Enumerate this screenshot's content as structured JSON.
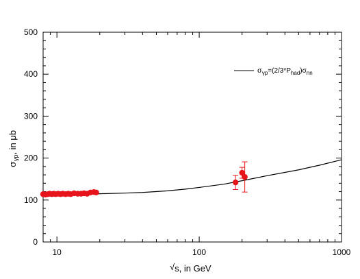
{
  "chart_data": {
    "type": "scatter",
    "title": "",
    "xlabel": {
      "prefix": "√",
      "text": "s, in GeV"
    },
    "ylabel": {
      "sigma": "σ",
      "sub": "γp",
      "text": ", in  μb"
    },
    "x_scale": "log",
    "xlim": [
      8,
      1000
    ],
    "ylim": [
      0,
      500
    ],
    "x_ticks": [
      {
        "value": 10,
        "label": "10"
      },
      {
        "value": 100,
        "label": "100"
      },
      {
        "value": 1000,
        "label": "1000"
      }
    ],
    "y_ticks": [
      {
        "value": 0,
        "label": "0"
      },
      {
        "value": 100,
        "label": "100"
      },
      {
        "value": 200,
        "label": "200"
      },
      {
        "value": 300,
        "label": "300"
      },
      {
        "value": 400,
        "label": "400"
      },
      {
        "value": 500,
        "label": "500"
      }
    ],
    "grid": false,
    "legend": {
      "position": "top-right",
      "sigma1": "σ",
      "sub1": "γp",
      "mid": "=(2/3*P",
      "sub2": "had",
      "close": ")σ",
      "sub3": "nn"
    },
    "colors": {
      "points": "#e8141c",
      "curve": "#000000",
      "axes": "#000000"
    },
    "series": [
      {
        "kind": "curve",
        "x": [
          8,
          10,
          15,
          20,
          30,
          40,
          60,
          80,
          100,
          150,
          200,
          300,
          500,
          700,
          1000
        ],
        "y": [
          112.5,
          113,
          114,
          115,
          116.5,
          118,
          122,
          126,
          130,
          138,
          146,
          158,
          172,
          183,
          196
        ]
      },
      {
        "kind": "points",
        "points": [
          {
            "x": 8.0,
            "y": 114,
            "err": 0
          },
          {
            "x": 8.3,
            "y": 113,
            "err": 0
          },
          {
            "x": 8.6,
            "y": 114,
            "err": 0
          },
          {
            "x": 8.9,
            "y": 115,
            "err": 0
          },
          {
            "x": 9.2,
            "y": 114,
            "err": 0
          },
          {
            "x": 9.5,
            "y": 115,
            "err": 0
          },
          {
            "x": 9.8,
            "y": 114,
            "err": 0
          },
          {
            "x": 10.2,
            "y": 115,
            "err": 0
          },
          {
            "x": 10.6,
            "y": 114,
            "err": 0
          },
          {
            "x": 11.0,
            "y": 115,
            "err": 0
          },
          {
            "x": 11.5,
            "y": 114,
            "err": 0
          },
          {
            "x": 12.0,
            "y": 115,
            "err": 0
          },
          {
            "x": 12.5,
            "y": 114,
            "err": 0
          },
          {
            "x": 13.2,
            "y": 116,
            "err": 0
          },
          {
            "x": 14.0,
            "y": 115,
            "err": 0
          },
          {
            "x": 14.8,
            "y": 115,
            "err": 0
          },
          {
            "x": 15.5,
            "y": 116,
            "err": 0
          },
          {
            "x": 16.3,
            "y": 115,
            "err": 0
          },
          {
            "x": 17.2,
            "y": 118,
            "err": 0
          },
          {
            "x": 18.2,
            "y": 119,
            "err": 0
          },
          {
            "x": 18.9,
            "y": 118,
            "err": 0
          },
          {
            "x": 180,
            "y": 142,
            "err": 17
          },
          {
            "x": 200,
            "y": 165,
            "err": 13
          },
          {
            "x": 209,
            "y": 155,
            "err": 36
          }
        ]
      }
    ]
  }
}
